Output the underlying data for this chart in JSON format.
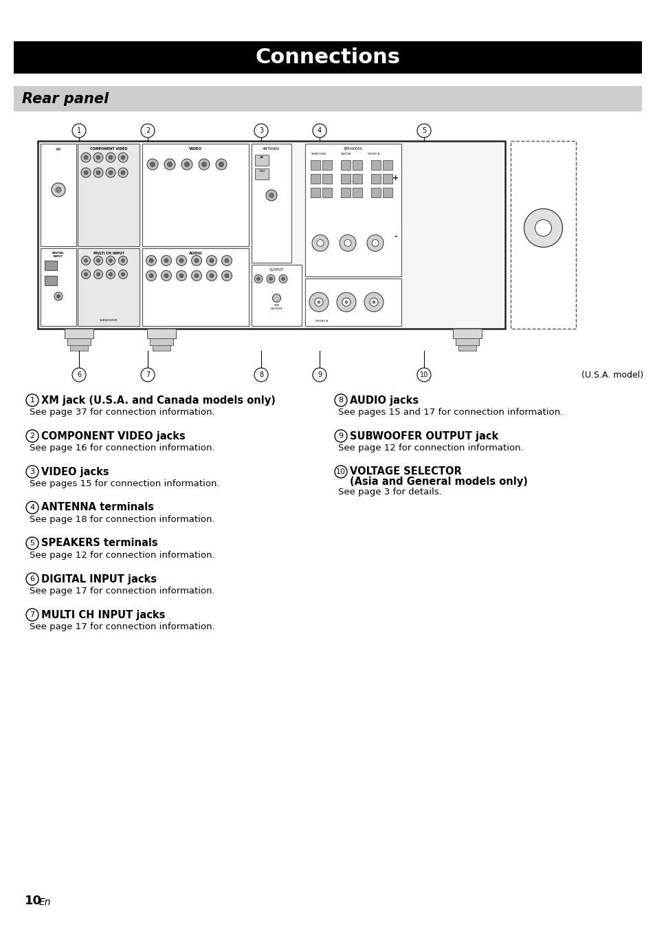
{
  "title": "Connections",
  "title_bg": "#000000",
  "title_color": "#ffffff",
  "title_fontsize": 22,
  "subtitle": "Rear panel",
  "subtitle_bg": "#cccccc",
  "subtitle_fontsize": 15,
  "page_number": "10",
  "page_bg": "#ffffff",
  "items_left": [
    {
      "num": "1",
      "heading": "XM jack (U.S.A. and Canada models only)",
      "body": "See page 37 for connection information."
    },
    {
      "num": "2",
      "heading": "COMPONENT VIDEO jacks",
      "body": "See page 16 for connection information."
    },
    {
      "num": "3",
      "heading": "VIDEO jacks",
      "body": "See pages 15 for connection information."
    },
    {
      "num": "4",
      "heading": "ANTENNA terminals",
      "body": "See page 18 for connection information."
    },
    {
      "num": "5",
      "heading": "SPEAKERS terminals",
      "body": "See page 12 for connection information."
    },
    {
      "num": "6",
      "heading": "DIGITAL INPUT jacks",
      "body": "See page 17 for connection information."
    },
    {
      "num": "7",
      "heading": "MULTI CH INPUT jacks",
      "body": "See page 17 for connection information."
    }
  ],
  "items_right": [
    {
      "num": "8",
      "heading": "AUDIO jacks",
      "body": "See pages 15 and 17 for connection information."
    },
    {
      "num": "9",
      "heading": "SUBWOOFER OUTPUT jack",
      "body": "See page 12 for connection information."
    },
    {
      "num": "10",
      "heading_line1": "VOLTAGE SELECTOR",
      "heading_line2": "(Asia and General models only)",
      "body": "See page 3 for details."
    }
  ],
  "usa_model_label": "(U.S.A. model)"
}
